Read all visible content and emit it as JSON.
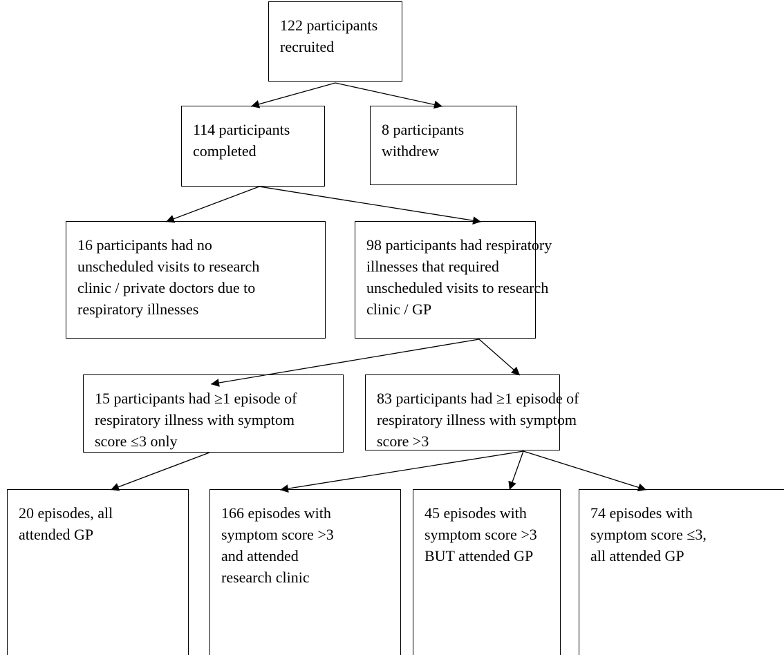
{
  "nodes": [
    {
      "lines": [
        "122 participants",
        "recruited"
      ]
    },
    {
      "lines": [
        "114 participants",
        "completed"
      ]
    },
    {
      "lines": [
        "8 participants",
        "withdrew"
      ]
    },
    {
      "lines": [
        "16 participants had no",
        "unscheduled visits to research",
        "clinic / private doctors due to",
        "respiratory illnesses"
      ]
    },
    {
      "lines": [
        "98 participants had respiratory",
        "illnesses that required",
        "unscheduled visits to research",
        "clinic / GP"
      ]
    },
    {
      "lines": [
        "15 participants had ≥1 episode of",
        "respiratory illness with symptom",
        "score ≤3 only"
      ]
    },
    {
      "lines": [
        "83 participants had ≥1 episode of",
        "respiratory illness with symptom",
        "score >3"
      ]
    },
    {
      "lines": [
        "20 episodes, all",
        "attended GP"
      ]
    },
    {
      "lines": [
        "166 episodes with",
        "symptom score >3",
        "and attended",
        "research clinic"
      ]
    },
    {
      "lines": [
        "45 episodes with",
        "symptom score >3",
        "BUT attended GP"
      ]
    },
    {
      "lines": [
        "74 episodes with",
        "symptom score ≤3,",
        "all attended GP"
      ]
    }
  ]
}
